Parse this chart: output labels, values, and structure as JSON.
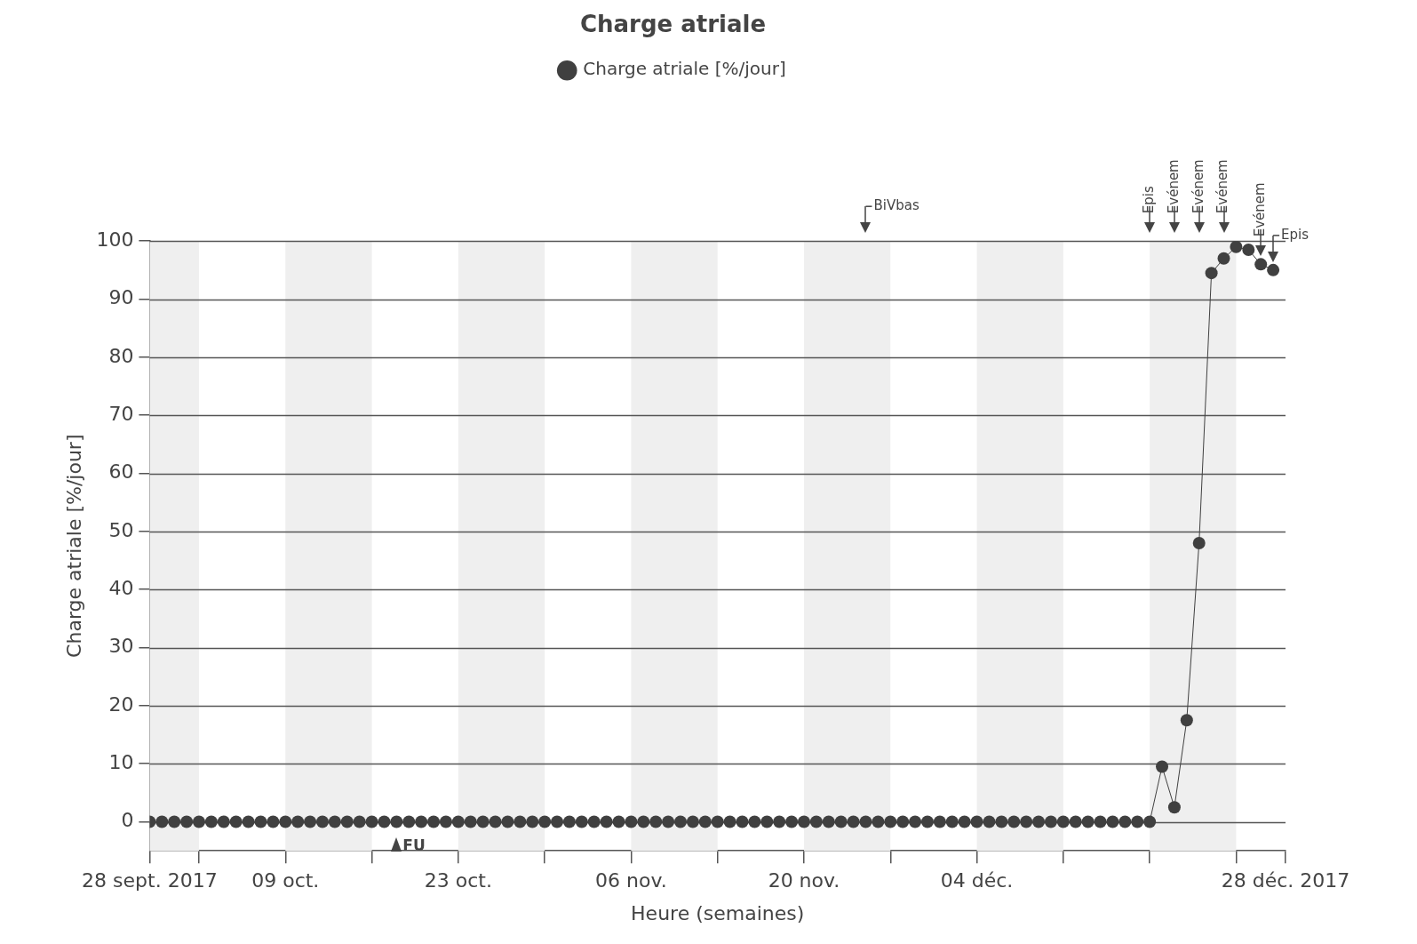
{
  "chart_data": {
    "type": "line",
    "title": "Charge atriale",
    "xlabel": "Heure (semaines)",
    "ylabel": "Charge atriale [%/jour]",
    "x": [
      "2017-09-28",
      "2017-09-29",
      "2017-09-30",
      "2017-10-01",
      "2017-10-02",
      "2017-10-03",
      "2017-10-04",
      "2017-10-05",
      "2017-10-06",
      "2017-10-07",
      "2017-10-08",
      "2017-10-09",
      "2017-10-10",
      "2017-10-11",
      "2017-10-12",
      "2017-10-13",
      "2017-10-14",
      "2017-10-15",
      "2017-10-16",
      "2017-10-17",
      "2017-10-18",
      "2017-10-19",
      "2017-10-20",
      "2017-10-21",
      "2017-10-22",
      "2017-10-23",
      "2017-10-24",
      "2017-10-25",
      "2017-10-26",
      "2017-10-27",
      "2017-10-28",
      "2017-10-29",
      "2017-10-30",
      "2017-10-31",
      "2017-11-01",
      "2017-11-02",
      "2017-11-03",
      "2017-11-04",
      "2017-11-05",
      "2017-11-06",
      "2017-11-07",
      "2017-11-08",
      "2017-11-09",
      "2017-11-10",
      "2017-11-11",
      "2017-11-12",
      "2017-11-13",
      "2017-11-14",
      "2017-11-15",
      "2017-11-16",
      "2017-11-17",
      "2017-11-18",
      "2017-11-19",
      "2017-11-20",
      "2017-11-21",
      "2017-11-22",
      "2017-11-23",
      "2017-11-24",
      "2017-11-25",
      "2017-11-26",
      "2017-11-27",
      "2017-11-28",
      "2017-11-29",
      "2017-11-30",
      "2017-12-01",
      "2017-12-02",
      "2017-12-03",
      "2017-12-04",
      "2017-12-05",
      "2017-12-06",
      "2017-12-07",
      "2017-12-08",
      "2017-12-09",
      "2017-12-10",
      "2017-12-11",
      "2017-12-12",
      "2017-12-13",
      "2017-12-14",
      "2017-12-15",
      "2017-12-16",
      "2017-12-17",
      "2017-12-18",
      "2017-12-19",
      "2017-12-20",
      "2017-12-21",
      "2017-12-22",
      "2017-12-23",
      "2017-12-24",
      "2017-12-25",
      "2017-12-26",
      "2017-12-27",
      "2017-12-28"
    ],
    "series": [
      {
        "name": "Charge atriale [%/jour]",
        "color": "#404040",
        "values": [
          0,
          0,
          0,
          0,
          0,
          0,
          0,
          0,
          0,
          0,
          0,
          0,
          0,
          0,
          0,
          0,
          0,
          0,
          0,
          0,
          0,
          0,
          0,
          0,
          0,
          0,
          0,
          0,
          0,
          0,
          0,
          0,
          0,
          0,
          0,
          0,
          0,
          0,
          0,
          0,
          0,
          0,
          0,
          0,
          0,
          0,
          0,
          0,
          0,
          0,
          0,
          0,
          0,
          0,
          0,
          0,
          0,
          0,
          0,
          0,
          0,
          0,
          0,
          0,
          0,
          0,
          0,
          0,
          0,
          0,
          0,
          0,
          0,
          0,
          0,
          0,
          0,
          0,
          0,
          0,
          0,
          0,
          9.5,
          2.5,
          17.5,
          48,
          94.5,
          97,
          99,
          98.5,
          96,
          95
        ]
      }
    ],
    "xlim": [
      "2017-09-28",
      "2017-12-29"
    ],
    "xticks": [
      {
        "value": "2017-09-28",
        "label": "28 sept. 2017"
      },
      {
        "value": "2017-10-02",
        "label": null
      },
      {
        "value": "2017-10-09",
        "label": "09 oct."
      },
      {
        "value": "2017-10-16",
        "label": null
      },
      {
        "value": "2017-10-23",
        "label": "23 oct."
      },
      {
        "value": "2017-10-30",
        "label": null
      },
      {
        "value": "2017-11-06",
        "label": "06 nov."
      },
      {
        "value": "2017-11-13",
        "label": null
      },
      {
        "value": "2017-11-20",
        "label": "20 nov."
      },
      {
        "value": "2017-11-27",
        "label": null
      },
      {
        "value": "2017-12-04",
        "label": "04 déc."
      },
      {
        "value": "2017-12-11",
        "label": null
      },
      {
        "value": "2017-12-18",
        "label": null
      },
      {
        "value": "2017-12-25",
        "label": null
      },
      {
        "value": "2017-12-29",
        "label": "28 déc. 2017"
      }
    ],
    "ylim": [
      -5,
      100
    ],
    "yticks": [
      0,
      10,
      20,
      30,
      40,
      50,
      60,
      70,
      80,
      90,
      100
    ],
    "grid": "y",
    "legend": "top",
    "marker": "circle",
    "line_style": "solid",
    "bands": [
      {
        "axis": "x",
        "from": "2017-09-28",
        "to": "2017-10-02",
        "color": "#efefef"
      },
      {
        "axis": "x",
        "from": "2017-10-09",
        "to": "2017-10-16",
        "color": "#efefef"
      },
      {
        "axis": "x",
        "from": "2017-10-23",
        "to": "2017-10-30",
        "color": "#efefef"
      },
      {
        "axis": "x",
        "from": "2017-11-06",
        "to": "2017-11-13",
        "color": "#efefef"
      },
      {
        "axis": "x",
        "from": "2017-11-20",
        "to": "2017-11-27",
        "color": "#efefef"
      },
      {
        "axis": "x",
        "from": "2017-12-04",
        "to": "2017-12-11",
        "color": "#efefef"
      },
      {
        "axis": "x",
        "from": "2017-12-18",
        "to": "2017-12-25",
        "color": "#efefef"
      }
    ],
    "annotations": [
      {
        "text": "FU",
        "x": "2017-10-18",
        "y": 0
      },
      {
        "text": "BiVbas",
        "x": "2017-11-25",
        "y": 100
      },
      {
        "text": "Epis",
        "x": "2017-12-18",
        "y": 100
      },
      {
        "text": "Evénem",
        "x": "2017-12-20",
        "y": 100
      },
      {
        "text": "Evénem",
        "x": "2017-12-22",
        "y": 100
      },
      {
        "text": "Evénem",
        "x": "2017-12-24",
        "y": 100
      },
      {
        "text": "Evénem",
        "x": "2017-12-27",
        "y": 96
      },
      {
        "text": "Epis",
        "x": "2017-12-28",
        "y": 95
      }
    ]
  }
}
